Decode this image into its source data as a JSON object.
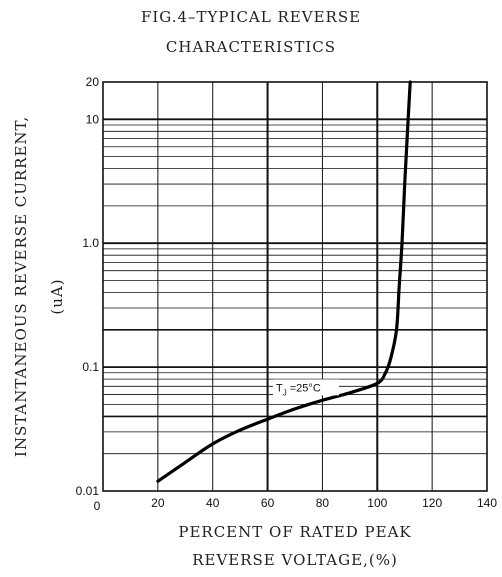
{
  "chart_data": {
    "type": "line",
    "title": "FIG.4–TYPICAL REVERSE",
    "subtitle": "CHARACTERISTICS",
    "xlabel_line1": "PERCENT OF RATED PEAK",
    "xlabel_line2": "REVERSE VOLTAGE,(%)",
    "ylabel_line1": "INSTANTANEOUS REVERSE CURRENT,",
    "ylabel_line2": "(uA)",
    "xlim": [
      0,
      140
    ],
    "ylim": [
      0.01,
      20
    ],
    "y_scale": "log",
    "x_ticks": [
      "0",
      "20",
      "40",
      "60",
      "80",
      "100",
      "120",
      "140"
    ],
    "x_tick_values": [
      0,
      20,
      40,
      60,
      80,
      100,
      120,
      140
    ],
    "y_ticks": [
      "0.01",
      "0.1",
      "1.0",
      "10",
      "20"
    ],
    "y_tick_values": [
      0.01,
      0.1,
      1.0,
      10,
      20
    ],
    "annotation": {
      "text_main": "T",
      "text_sub": "J",
      "text_rest": " =25°C",
      "x": 74,
      "y": 0.057
    },
    "grid": true,
    "series": [
      {
        "x": [
          20,
          30,
          40,
          50,
          60,
          70,
          80,
          90,
          100,
          103,
          105,
          107,
          108,
          109,
          110,
          111,
          112
        ],
        "y": [
          0.012,
          0.017,
          0.024,
          0.031,
          0.038,
          0.046,
          0.054,
          0.062,
          0.074,
          0.09,
          0.12,
          0.2,
          0.45,
          1.0,
          3.0,
          8.0,
          20
        ]
      }
    ]
  }
}
